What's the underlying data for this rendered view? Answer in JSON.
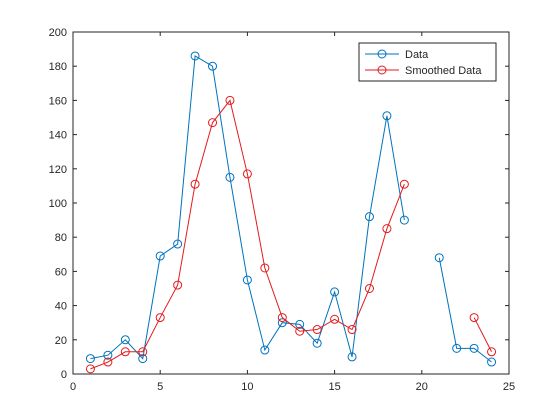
{
  "chart_data": {
    "type": "line",
    "title": "",
    "xlabel": "",
    "ylabel": "",
    "xlim": [
      0,
      25
    ],
    "ylim": [
      0,
      200
    ],
    "xticks": [
      0,
      5,
      10,
      15,
      20,
      25
    ],
    "yticks": [
      0,
      20,
      40,
      60,
      80,
      100,
      120,
      140,
      160,
      180,
      200
    ],
    "xtick_labels": [
      "0",
      "5",
      "10",
      "15",
      "20",
      "25"
    ],
    "ytick_labels": [
      "0",
      "20",
      "40",
      "60",
      "80",
      "100",
      "120",
      "140",
      "160",
      "180",
      "200"
    ],
    "grid": false,
    "legend_position": "top-right",
    "series": [
      {
        "name": "Data",
        "color": "#0072BD",
        "marker": "circle",
        "x": [
          1,
          2,
          3,
          4,
          5,
          6,
          7,
          8,
          9,
          10,
          11,
          12,
          13,
          14,
          15,
          16,
          17,
          18,
          19,
          20,
          21,
          22,
          23,
          24
        ],
        "y": [
          9,
          11,
          20,
          9,
          69,
          76,
          186,
          180,
          115,
          55,
          14,
          30,
          29,
          18,
          48,
          10,
          92,
          151,
          90,
          null,
          68,
          15,
          15,
          7
        ]
      },
      {
        "name": "Smoothed Data",
        "color": "#E41A1C",
        "marker": "circle",
        "x": [
          1,
          2,
          3,
          4,
          5,
          6,
          7,
          8,
          9,
          10,
          11,
          12,
          13,
          14,
          15,
          16,
          17,
          18,
          19,
          20,
          21,
          22,
          23,
          24
        ],
        "y": [
          3,
          7,
          13,
          13,
          33,
          52,
          111,
          147,
          160,
          117,
          62,
          33,
          25,
          26,
          32,
          26,
          50,
          85,
          111,
          null,
          null,
          null,
          33,
          13
        ]
      }
    ]
  }
}
